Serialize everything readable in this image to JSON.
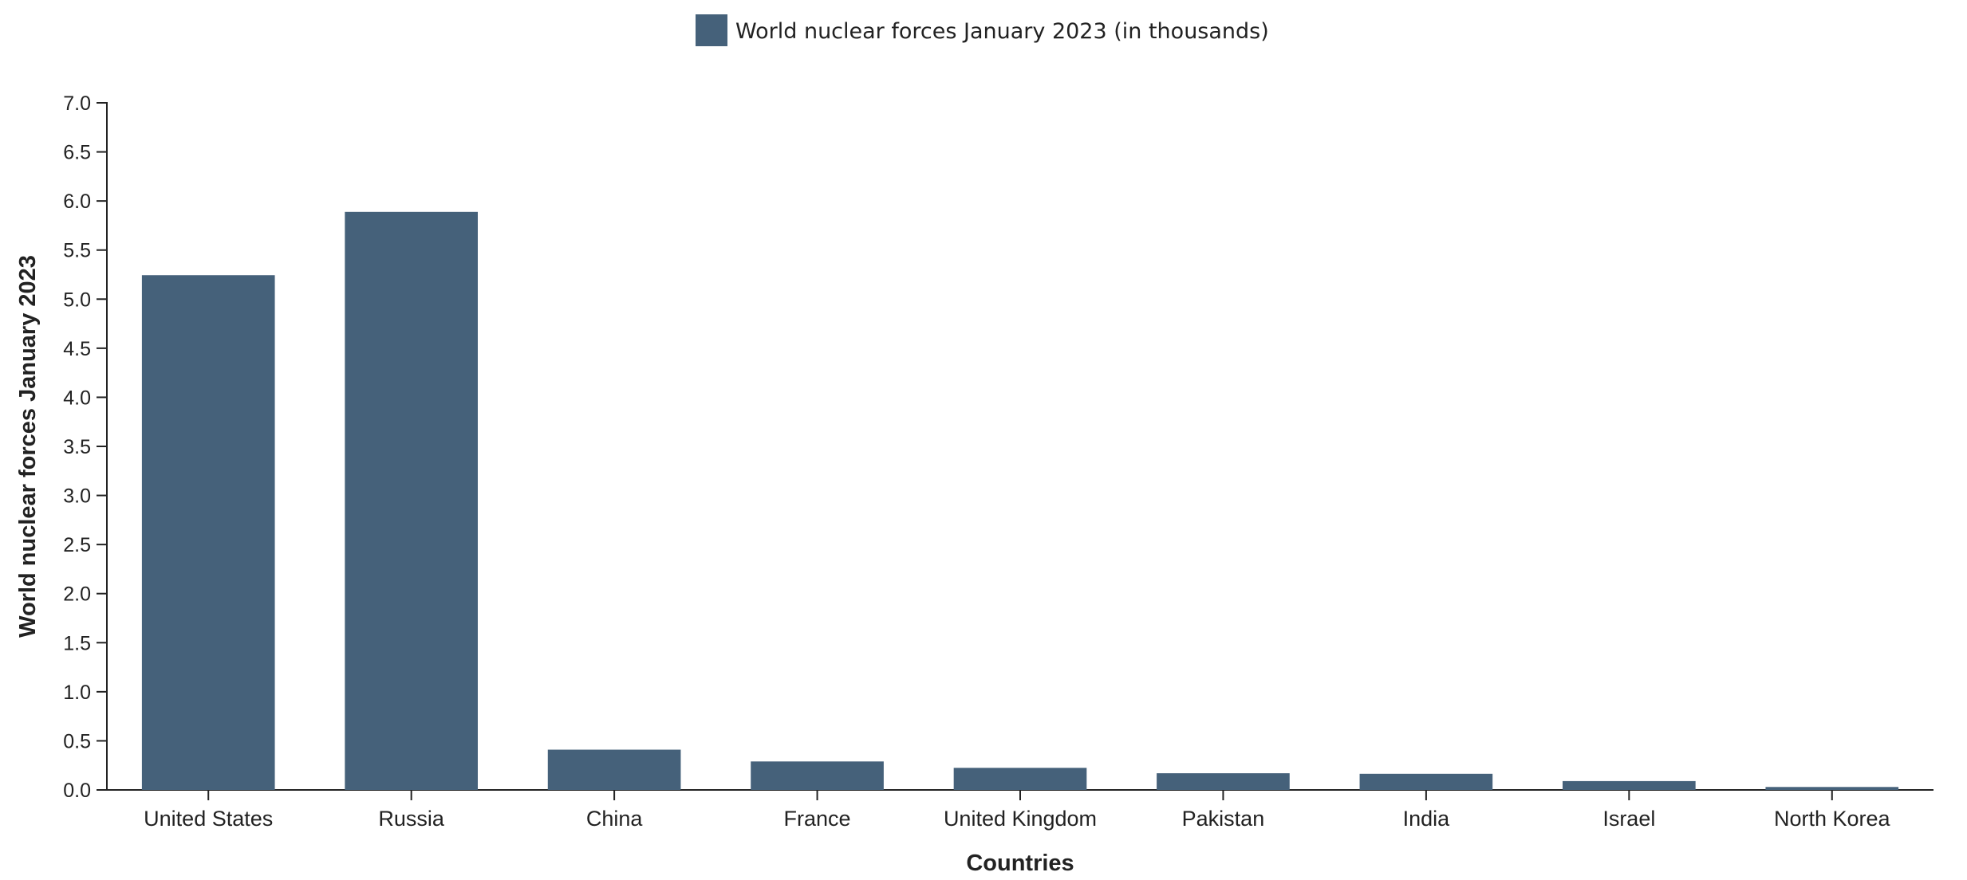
{
  "chart_data": {
    "type": "bar",
    "title": "",
    "categories": [
      "United States",
      "Russia",
      "China",
      "France",
      "United Kingdom",
      "Pakistan",
      "India",
      "Israel",
      "North Korea"
    ],
    "series": [
      {
        "name": "World nuclear forces January 2023 (in thousands)",
        "color": "#45617a",
        "values": [
          5.244,
          5.889,
          0.41,
          0.29,
          0.225,
          0.17,
          0.164,
          0.09,
          0.03
        ]
      }
    ],
    "xlabel": "Countries",
    "ylabel": "World nuclear forces January 2023",
    "ylim": [
      0,
      7.0
    ],
    "yticks": [
      "0.0",
      "0.5",
      "1.0",
      "1.5",
      "2.0",
      "2.5",
      "3.0",
      "3.5",
      "4.0",
      "4.5",
      "5.0",
      "5.5",
      "6.0",
      "6.5",
      "7.0"
    ],
    "grid": false,
    "legend_position": "top-center"
  }
}
